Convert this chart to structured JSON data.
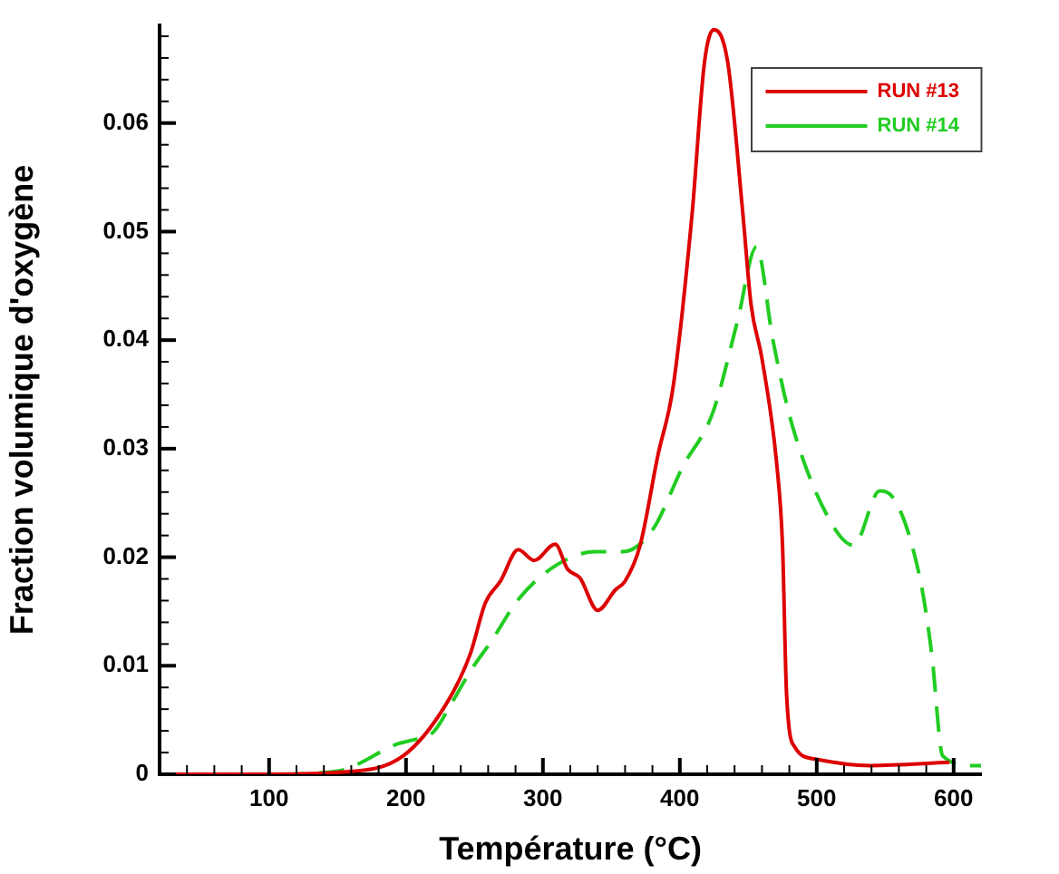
{
  "chart_data": {
    "type": "line",
    "xlabel": "Température (°C)",
    "ylabel": "Fraction volumique d'oxygène",
    "xlim": [
      20,
      620
    ],
    "ylim": [
      0,
      0.069
    ],
    "xticks": [
      {
        "value": 40,
        "label": null
      },
      {
        "value": 60,
        "label": null
      },
      {
        "value": 80,
        "label": null
      },
      100,
      {
        "value": 120,
        "label": null
      },
      {
        "value": 140,
        "label": null
      },
      {
        "value": 160,
        "label": null
      },
      {
        "value": 180,
        "label": null
      },
      200,
      {
        "value": 220,
        "label": null
      },
      {
        "value": 240,
        "label": null
      },
      {
        "value": 260,
        "label": null
      },
      {
        "value": 280,
        "label": null
      },
      300,
      {
        "value": 320,
        "label": null
      },
      {
        "value": 340,
        "label": null
      },
      {
        "value": 360,
        "label": null
      },
      {
        "value": 380,
        "label": null
      },
      400,
      {
        "value": 420,
        "label": null
      },
      {
        "value": 440,
        "label": null
      },
      {
        "value": 460,
        "label": null
      },
      {
        "value": 480,
        "label": null
      },
      500,
      {
        "value": 520,
        "label": null
      },
      {
        "value": 540,
        "label": null
      },
      {
        "value": 560,
        "label": null
      },
      {
        "value": 580,
        "label": null
      },
      600
    ],
    "yticks": [
      0,
      {
        "value": 0.002,
        "label": null
      },
      {
        "value": 0.004,
        "label": null
      },
      {
        "value": 0.006,
        "label": null
      },
      {
        "value": 0.008,
        "label": null
      },
      0.01,
      {
        "value": 0.012,
        "label": null
      },
      {
        "value": 0.014,
        "label": null
      },
      {
        "value": 0.016,
        "label": null
      },
      {
        "value": 0.018,
        "label": null
      },
      0.02,
      {
        "value": 0.022,
        "label": null
      },
      {
        "value": 0.024,
        "label": null
      },
      {
        "value": 0.026,
        "label": null
      },
      {
        "value": 0.028,
        "label": null
      },
      0.03,
      {
        "value": 0.032,
        "label": null
      },
      {
        "value": 0.034,
        "label": null
      },
      {
        "value": 0.036,
        "label": null
      },
      {
        "value": 0.038,
        "label": null
      },
      0.04,
      {
        "value": 0.042,
        "label": null
      },
      {
        "value": 0.044,
        "label": null
      },
      {
        "value": 0.046,
        "label": null
      },
      {
        "value": 0.048,
        "label": null
      },
      0.05,
      {
        "value": 0.052,
        "label": null
      },
      {
        "value": 0.054,
        "label": null
      },
      {
        "value": 0.056,
        "label": null
      },
      {
        "value": 0.058,
        "label": null
      },
      0.06,
      {
        "value": 0.062,
        "label": null
      },
      {
        "value": 0.064,
        "label": null
      },
      {
        "value": 0.066,
        "label": null
      },
      {
        "value": 0.068,
        "label": null
      }
    ],
    "grid": false,
    "legend": "top right",
    "marker": "none",
    "series": [
      {
        "name": "RUN #13",
        "color": "#dd0000",
        "line_style": "solid",
        "x": [
          20,
          100,
          154,
          198,
          229,
          247,
          258,
          269,
          282,
          293.5,
          309,
          318,
          327,
          340,
          353,
          360,
          371,
          384,
          395,
          409,
          418,
          425,
          435,
          446,
          452,
          460,
          471,
          475,
          478,
          484,
          499,
          539,
          597
        ],
        "values": [
          0,
          0,
          0.0002,
          0.0017,
          0.0064,
          0.0111,
          0.0158,
          0.0178,
          0.0207,
          0.0197,
          0.0212,
          0.0189,
          0.0181,
          0.0151,
          0.017,
          0.0178,
          0.0211,
          0.0294,
          0.0356,
          0.0517,
          0.0656,
          0.0686,
          0.0656,
          0.0517,
          0.0433,
          0.0383,
          0.0283,
          0.0211,
          0.0073,
          0.0025,
          0.0014,
          0.0008,
          0.0011
        ]
      },
      {
        "name": "RUN #14",
        "color": "#22cc22",
        "line_style": "dashed",
        "x": [
          20,
          100,
          150,
          194,
          203,
          220,
          234,
          247,
          262.5,
          282,
          309,
          338,
          358,
          380,
          402,
          424,
          442,
          456,
          468,
          482,
          510,
          527,
          546,
          555,
          575,
          584,
          592,
          614,
          620
        ],
        "values": [
          0,
          0,
          0.0003,
          0.0028,
          0.0031,
          0.0039,
          0.0067,
          0.0095,
          0.0123,
          0.0161,
          0.0192,
          0.0205,
          0.0205,
          0.0225,
          0.0283,
          0.0333,
          0.0417,
          0.0486,
          0.04,
          0.0322,
          0.0233,
          0.0211,
          0.0261,
          0.0256,
          0.0183,
          0.0111,
          0.0017,
          0.0008,
          0.0008
        ]
      }
    ]
  }
}
